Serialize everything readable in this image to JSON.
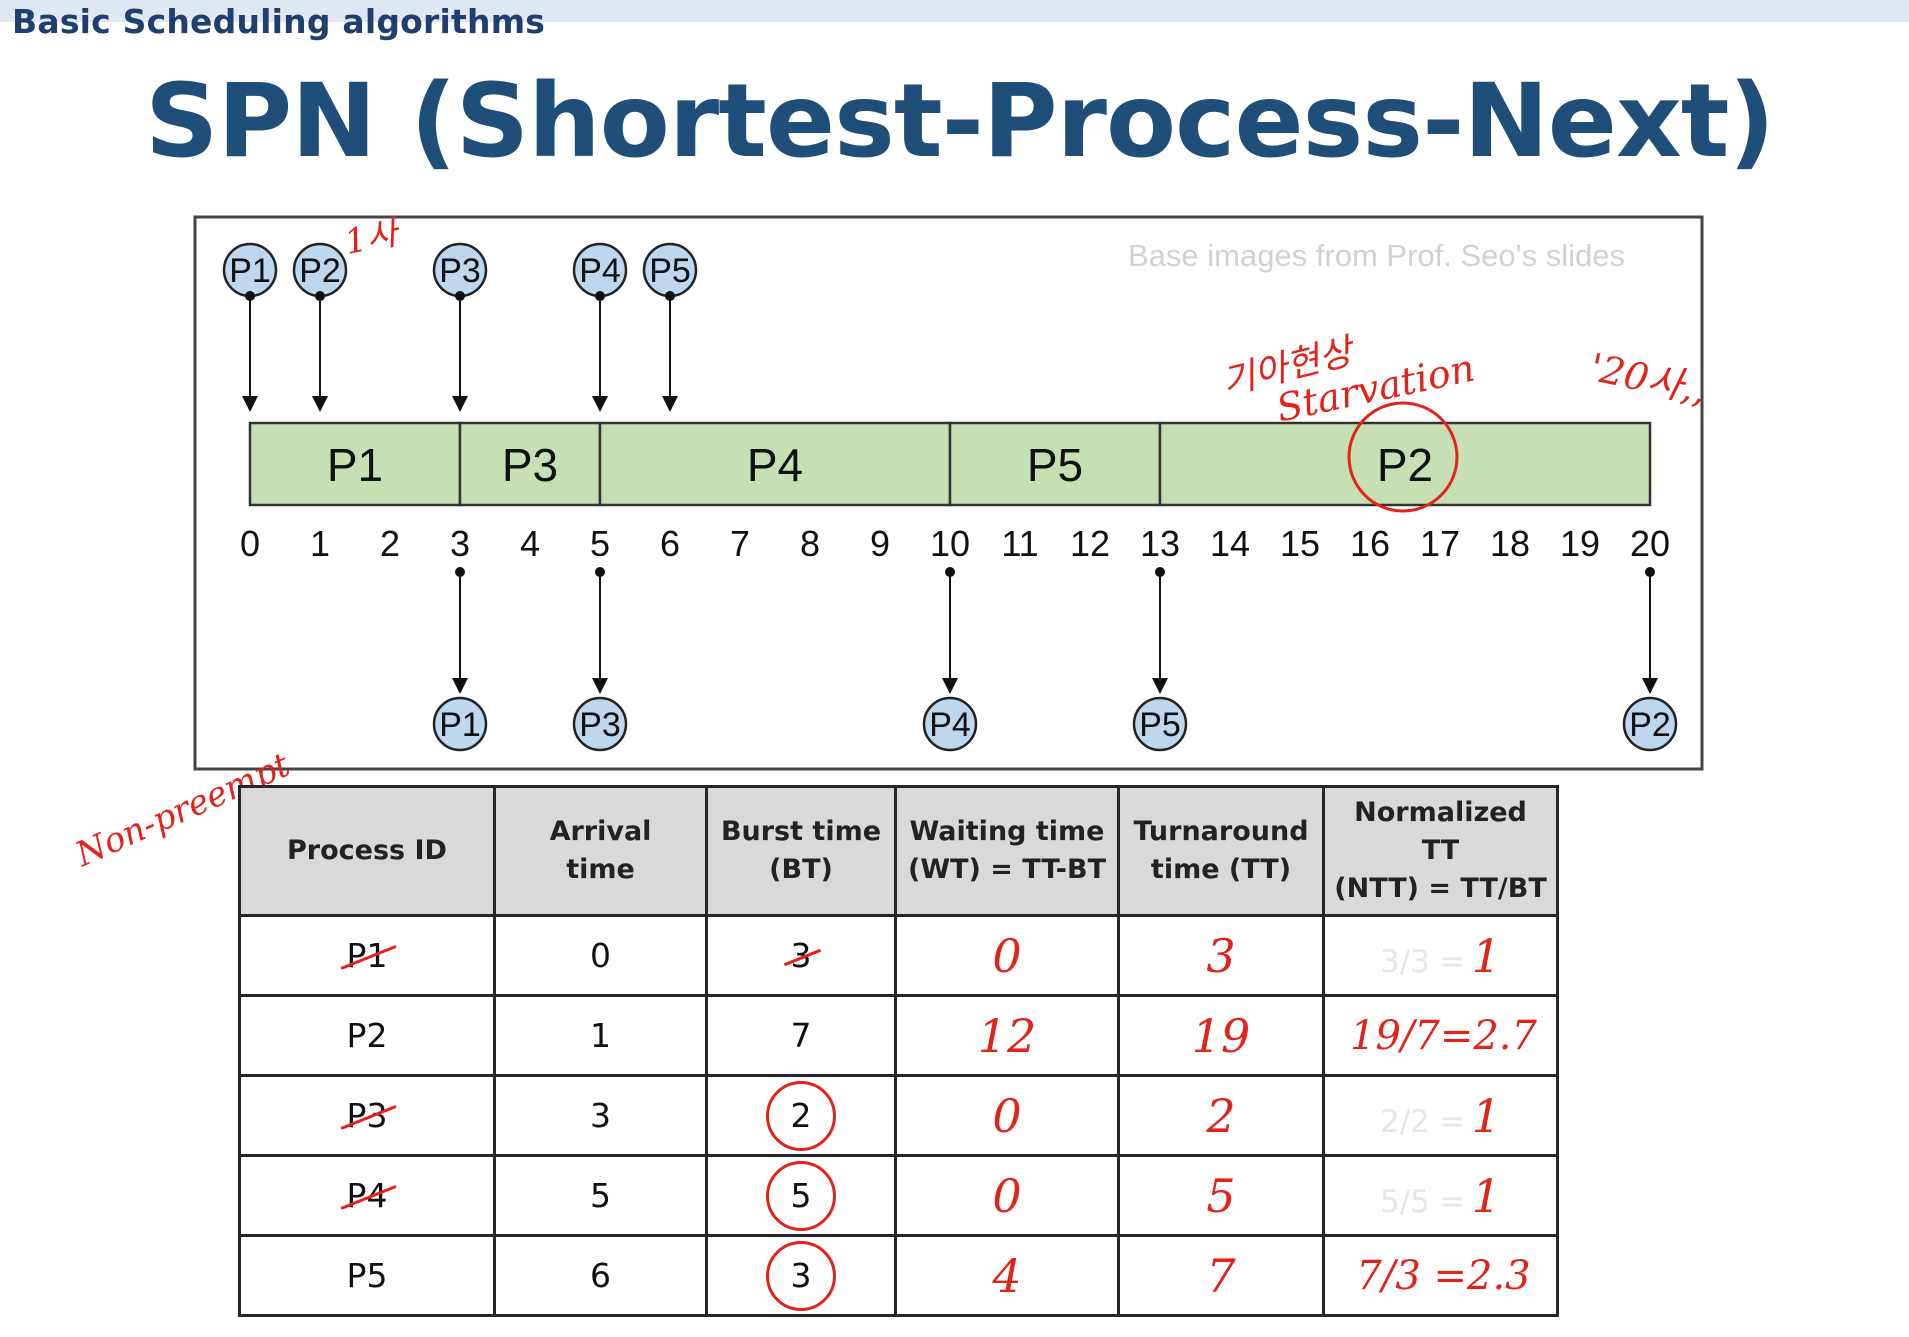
{
  "slide": {
    "topic": "Basic Scheduling algorithms",
    "title": "SPN (Shortest-Process-Next)",
    "credit": "Base images from Prof. Seo's slides"
  },
  "timeline": {
    "ticks": [
      0,
      1,
      2,
      3,
      4,
      5,
      6,
      7,
      8,
      9,
      10,
      11,
      12,
      13,
      14,
      15,
      16,
      17,
      18,
      19,
      20
    ],
    "arrivals": [
      {
        "label": "P1",
        "time": 0
      },
      {
        "label": "P2",
        "time": 1
      },
      {
        "label": "P3",
        "time": 3
      },
      {
        "label": "P4",
        "time": 5
      },
      {
        "label": "P5",
        "time": 6
      }
    ],
    "blocks": [
      {
        "label": "P1",
        "start": 0,
        "end": 3
      },
      {
        "label": "P3",
        "start": 3,
        "end": 5
      },
      {
        "label": "P4",
        "start": 5,
        "end": 10
      },
      {
        "label": "P5",
        "start": 10,
        "end": 13
      },
      {
        "label": "P2",
        "start": 13,
        "end": 20
      }
    ],
    "completions": [
      {
        "label": "P1",
        "time": 3
      },
      {
        "label": "P3",
        "time": 5
      },
      {
        "label": "P4",
        "time": 10
      },
      {
        "label": "P5",
        "time": 13
      },
      {
        "label": "P2",
        "time": 20
      }
    ],
    "colors": {
      "block": "#c6e0b4",
      "circle": "#bdd7ee",
      "annotation": "#e2231a"
    }
  },
  "annotations": {
    "note_p2": "1사",
    "note_korean": "기아현상",
    "note_starvation": "Starvation",
    "note_20": "'20사,,",
    "note_left": "Non-preempt"
  },
  "table": {
    "headers": [
      {
        "line1": "Process ID",
        "line2": ""
      },
      {
        "line1": "Arrival",
        "line2": "time"
      },
      {
        "line1": "Burst time",
        "line2": "(BT)"
      },
      {
        "line1": "Waiting time",
        "line2": "(WT) = TT-BT"
      },
      {
        "line1": "Turnaround",
        "line2": "time (TT)"
      },
      {
        "line1": "Normalized TT",
        "line2": "(NTT) = TT/BT"
      }
    ],
    "rows": [
      {
        "pid": "P1",
        "arrival": "0",
        "burst": "3",
        "wt": "0",
        "tt": "3",
        "ntt_ghost": "3/3 =",
        "ntt": "1"
      },
      {
        "pid": "P2",
        "arrival": "1",
        "burst": "7",
        "wt": "12",
        "tt": "19",
        "ntt_ghost": "",
        "ntt": "19/7=2.7"
      },
      {
        "pid": "P3",
        "arrival": "3",
        "burst": "2",
        "wt": "0",
        "tt": "2",
        "ntt_ghost": "2/2 =",
        "ntt": "1"
      },
      {
        "pid": "P4",
        "arrival": "5",
        "burst": "5",
        "wt": "0",
        "tt": "5",
        "ntt_ghost": "5/5 =",
        "ntt": "1"
      },
      {
        "pid": "P5",
        "arrival": "6",
        "burst": "3",
        "wt": "4",
        "tt": "7",
        "ntt_ghost": "",
        "ntt": "7/3 =2.3"
      }
    ]
  }
}
